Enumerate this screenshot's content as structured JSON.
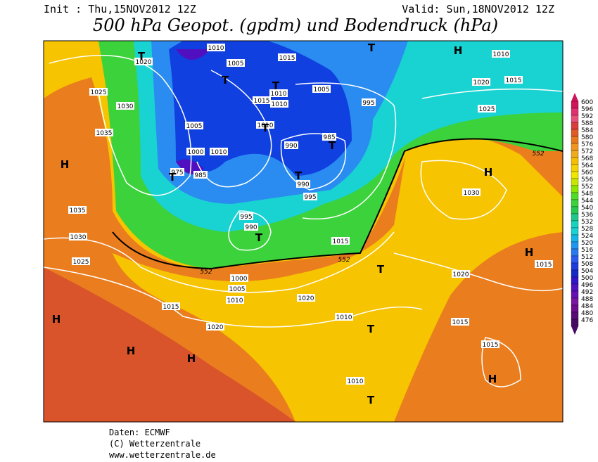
{
  "header": {
    "init": "Init : Thu,15NOV2012  12Z",
    "valid": "Valid: Sun,18NOV2012  12Z",
    "title": "500 hPa Geopot. (gpdm) und Bodendruck (hPa)"
  },
  "map": {
    "pressure_labels": [
      "1020",
      "1010",
      "1015",
      "1005",
      "1025",
      "1030",
      "1035",
      "1015",
      "1010",
      "1010",
      "1005",
      "995",
      "1010",
      "1020",
      "1015",
      "1025",
      "1005",
      "1010",
      "1000",
      "1010",
      "975",
      "985",
      "990",
      "985",
      "990",
      "995",
      "1030",
      "1035",
      "995",
      "990",
      "1030",
      "1015",
      "1025",
      "552",
      "552",
      "1020",
      "1015",
      "1000",
      "1005",
      "1010",
      "1020",
      "1015",
      "1010",
      "1020",
      "1015",
      "1015",
      "1010",
      "552"
    ],
    "centers": [
      "T",
      "T",
      "T",
      "T",
      "T",
      "T",
      "T",
      "T",
      "T",
      "T",
      "T",
      "T",
      "H",
      "H",
      "H",
      "H",
      "H",
      "H",
      "H",
      "H"
    ]
  },
  "colorbar": {
    "labels": [
      "600",
      "596",
      "592",
      "588",
      "584",
      "580",
      "576",
      "572",
      "568",
      "564",
      "560",
      "556",
      "552",
      "548",
      "544",
      "540",
      "536",
      "532",
      "528",
      "524",
      "520",
      "516",
      "512",
      "508",
      "504",
      "500",
      "496",
      "492",
      "488",
      "484",
      "480",
      "476"
    ]
  },
  "footer": {
    "source": "Daten: ECMWF",
    "copyright": "(C) Wetterzentrale",
    "url": "www.wetterzentrale.de"
  }
}
